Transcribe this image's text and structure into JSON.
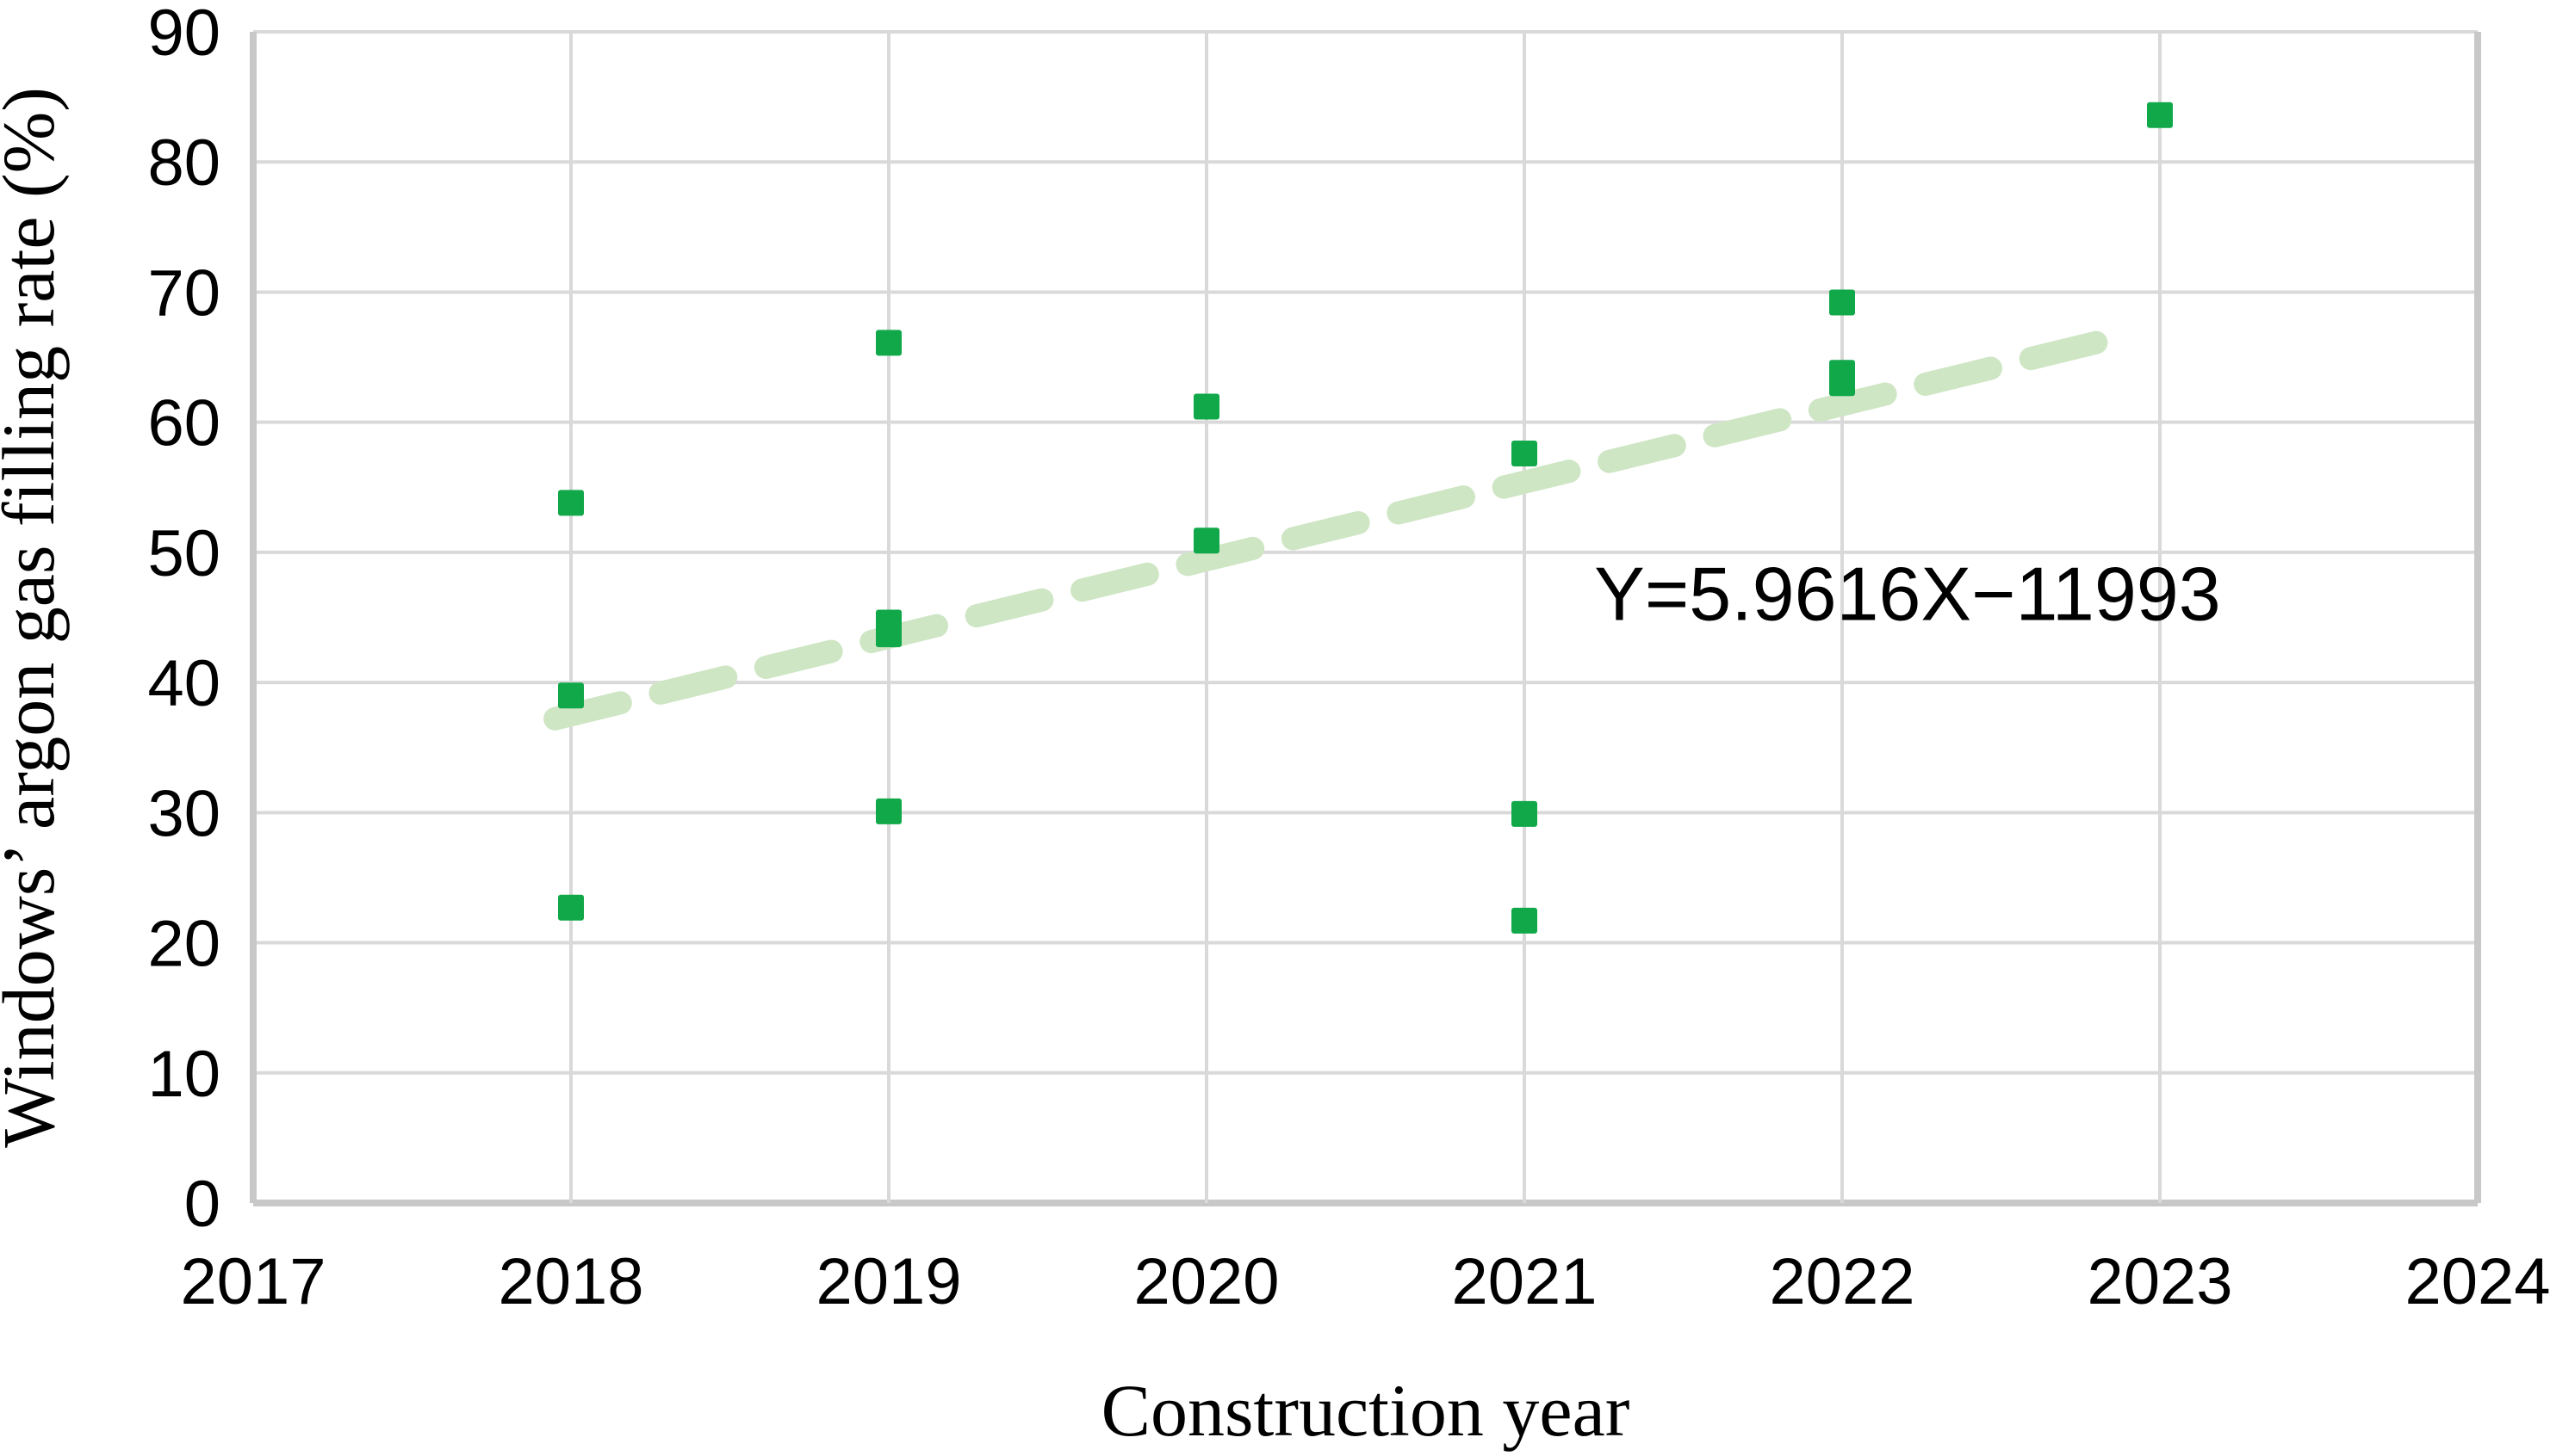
{
  "chart_data": {
    "type": "scatter",
    "title": "",
    "xlabel": "Construction year",
    "ylabel": "Windows’ argon gas filling rate (%)",
    "xlim": [
      2017,
      2024
    ],
    "ylim": [
      0,
      90
    ],
    "x_ticks": [
      2017,
      2018,
      2019,
      2020,
      2021,
      2022,
      2023,
      2024
    ],
    "y_ticks": [
      0,
      10,
      20,
      30,
      40,
      50,
      60,
      70,
      80,
      90
    ],
    "grid": true,
    "legend": "none",
    "series": [
      {
        "name": "Windows argon gas filling rate",
        "marker": "square",
        "color": "#10a848",
        "points": [
          [
            2018,
            53.8
          ],
          [
            2018,
            39.0
          ],
          [
            2018,
            22.7
          ],
          [
            2019,
            66.1
          ],
          [
            2019,
            44.6
          ],
          [
            2019,
            43.7
          ],
          [
            2019,
            30.1
          ],
          [
            2020,
            61.2
          ],
          [
            2020,
            50.9
          ],
          [
            2021,
            57.6
          ],
          [
            2021,
            29.9
          ],
          [
            2021,
            21.7
          ],
          [
            2022,
            69.2
          ],
          [
            2022,
            63.8
          ],
          [
            2022,
            63.0
          ],
          [
            2023,
            83.6
          ]
        ]
      }
    ],
    "trendline": {
      "style": "dashed",
      "color": "#cfe6c5",
      "slope": 5.9616,
      "intercept": -11993,
      "x_start": 2017.95,
      "x_end": 2022.88,
      "equation_text": "Y=5.9616X−11993",
      "equation_anchor_x": 2021.22,
      "equation_anchor_y": 46.8
    },
    "colors": {
      "marker": "#10a848",
      "trendline": "#cfe6c5",
      "gridline": "#d9d9d9",
      "axis_border": "#c8c8c8",
      "text": "#000000",
      "background": "#ffffff"
    }
  }
}
